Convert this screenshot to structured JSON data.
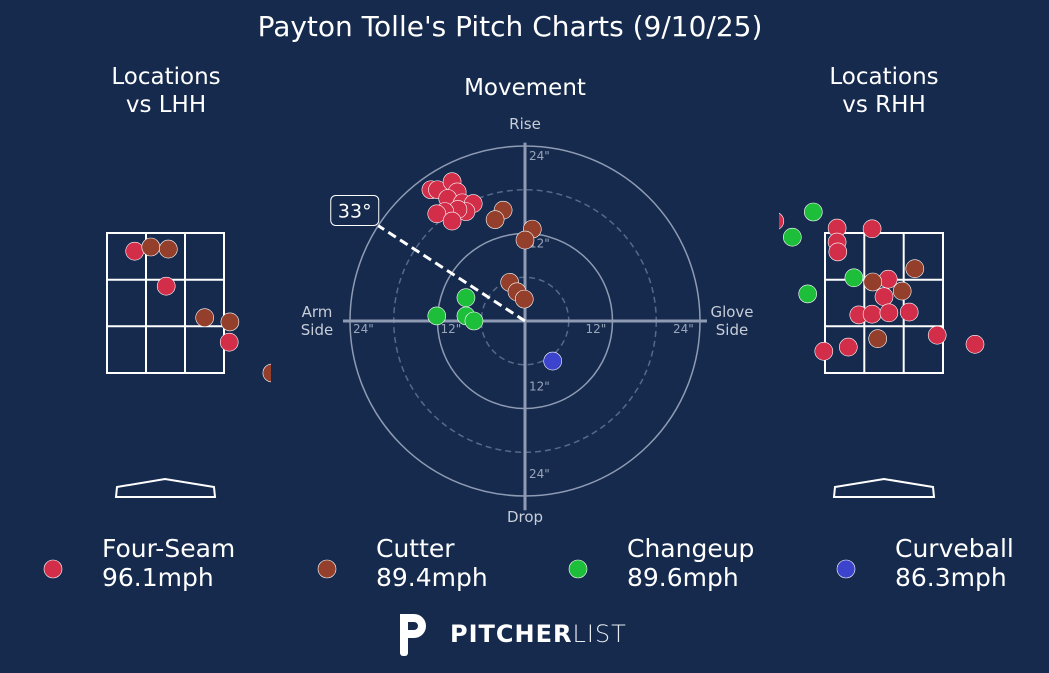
{
  "title": "Payton Tolle's Pitch Charts (9/10/25)",
  "footer": {
    "brand_bold": "PITCHER",
    "brand_light": "LIST"
  },
  "chart_data": [
    {
      "type": "scatter",
      "title": "Locations\nvs LHH",
      "xlim": [
        -1.5,
        1.5
      ],
      "ylim": [
        0,
        5
      ],
      "series": [
        {
          "color": "#d22d49",
          "x": [
            -0.44,
            0.01,
            0.91
          ],
          "y": [
            3.24,
            2.74,
            1.94
          ]
        },
        {
          "color": "#933f2c",
          "x": [
            -0.21,
            0.04,
            0.56,
            0.92,
            1.52
          ],
          "y": [
            3.3,
            3.27,
            2.29,
            2.23,
            1.5
          ]
        }
      ]
    },
    {
      "type": "polar",
      "title": "Movement",
      "rlim": [
        0,
        24
      ],
      "rticks": [
        {
          "value": 12,
          "label": "12\""
        },
        {
          "value": 24,
          "label": "24\""
        }
      ],
      "minor_rings": [
        6,
        18
      ],
      "top_label": "Rise",
      "bottom_label": "Drop",
      "left_label": "Arm\nSide",
      "right_label": "Glove\nSide",
      "arm_angle": 33,
      "arm_angle_label": "33°",
      "series": [
        {
          "name": "Four-Seam",
          "speed": "96.1mph",
          "color": "#d22d49",
          "x": [
            -12.9,
            -12.0,
            -10.0,
            -9.3,
            -10.6,
            -8.6,
            -7.1,
            -8.1,
            -9.2,
            -11.0,
            -12.1,
            -10.0
          ],
          "y": [
            18.0,
            18.0,
            19.1,
            17.7,
            16.8,
            16.2,
            16.1,
            15.0,
            15.3,
            15.0,
            14.7,
            13.7
          ]
        },
        {
          "name": "Cutter",
          "speed": "89.4mph",
          "color": "#933f2c",
          "x": [
            -3.0,
            -4.1,
            1.0,
            0,
            -2.1,
            -1.1,
            -0.1
          ],
          "y": [
            15.2,
            13.9,
            12.6,
            11.1,
            5.3,
            4.0,
            3.0
          ]
        },
        {
          "name": "Changeup",
          "speed": "89.6mph",
          "color": "#1dbe3a",
          "x": [
            -8.1,
            -12.1,
            -8.1,
            -7.0
          ],
          "y": [
            3.2,
            0.7,
            0.7,
            0
          ]
        },
        {
          "name": "Curveball",
          "speed": "86.3mph",
          "color": "#3c44cd",
          "x": [
            3.8
          ],
          "y": [
            -5.5
          ]
        }
      ]
    },
    {
      "type": "scatter",
      "title": "Locations\nvs RHH",
      "xlim": [
        -1.5,
        1.5
      ],
      "ylim": [
        0,
        5
      ],
      "series": [
        {
          "color": "#d22d49",
          "x": [
            -1.56,
            -0.67,
            -0.17,
            -0.67,
            -0.66,
            0.06,
            0,
            -0.36,
            -0.17,
            0.07,
            0.36,
            0.76,
            1.3,
            -0.86,
            -0.51
          ],
          "y": [
            3.67,
            3.57,
            3.56,
            3.37,
            3.23,
            2.84,
            2.59,
            2.33,
            2.34,
            2.36,
            2.37,
            2.04,
            1.91,
            1.81,
            1.87
          ]
        },
        {
          "color": "#933f2c",
          "x": [
            0.44,
            -0.16,
            0.26,
            -0.09
          ],
          "y": [
            2.99,
            2.8,
            2.67,
            1.99
          ]
        },
        {
          "color": "#1dbe3a",
          "x": [
            -1.01,
            -1.31,
            -0.43,
            -1.09
          ],
          "y": [
            3.8,
            3.44,
            2.86,
            2.63
          ]
        }
      ]
    }
  ]
}
